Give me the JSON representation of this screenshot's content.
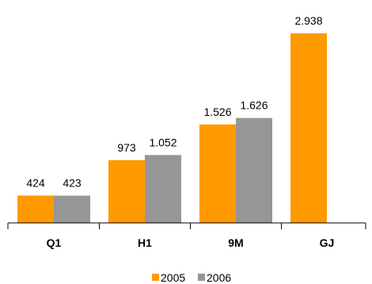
{
  "chart_data": {
    "type": "bar",
    "categories": [
      "Q1",
      "H1",
      "9M",
      "GJ"
    ],
    "series": [
      {
        "name": "2005",
        "values": [
          424,
          973,
          1526,
          2938
        ],
        "labels": [
          "424",
          "973",
          "1.526",
          "2.938"
        ],
        "color": "#FF9900"
      },
      {
        "name": "2006",
        "values": [
          423,
          1052,
          1626,
          null
        ],
        "labels": [
          "423",
          "1.052",
          "1.626",
          ""
        ],
        "color": "#969696"
      }
    ],
    "ylim": [
      0,
      2938
    ],
    "grid": false,
    "legend": "bottom-center"
  }
}
